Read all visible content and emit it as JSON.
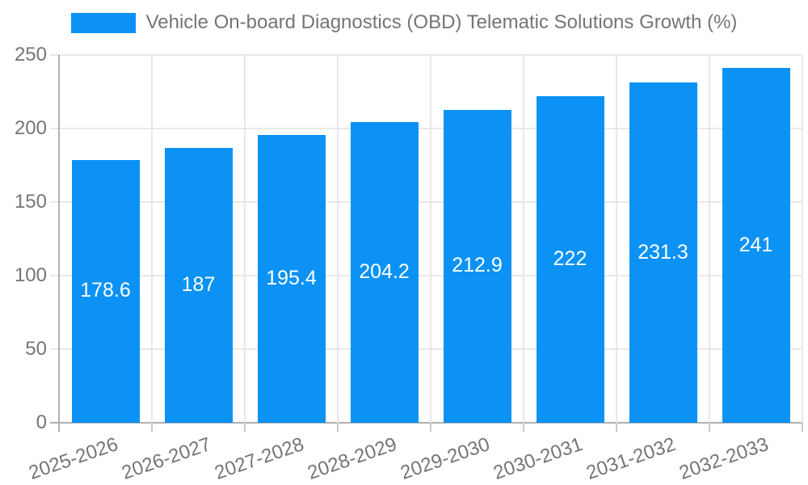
{
  "legend": {
    "label": "Vehicle On-board Diagnostics (OBD) Telematic Solutions Growth (%)"
  },
  "chart_data": {
    "type": "bar",
    "title": "Vehicle On-board Diagnostics (OBD) Telematic Solutions Growth (%)",
    "categories": [
      "2025-2026",
      "2026-2027",
      "2027-2028",
      "2028-2029",
      "2029-2030",
      "2030-2031",
      "2031-2032",
      "2032-2033"
    ],
    "values": [
      178.6,
      187,
      195.4,
      204.2,
      212.9,
      222,
      231.3,
      241
    ],
    "value_labels": [
      "178.6",
      "187",
      "195.4",
      "204.2",
      "212.9",
      "222",
      "231.3",
      "241"
    ],
    "xlabel": "",
    "ylabel": "",
    "ylim": [
      0,
      250
    ],
    "yticks": [
      0,
      50,
      100,
      150,
      200,
      250
    ],
    "grid": "on",
    "legend_position": "top-center",
    "x_label_rotation_deg": -19,
    "bar_color": "#0b92f4",
    "value_label_color": "#ffffff",
    "axis_text_color": "#757575",
    "gridline_color": "#e8e8e8",
    "axis_line_color": "#b0b0b0",
    "tick_color": "#c9c9c9",
    "background_color": "#ffffff"
  }
}
